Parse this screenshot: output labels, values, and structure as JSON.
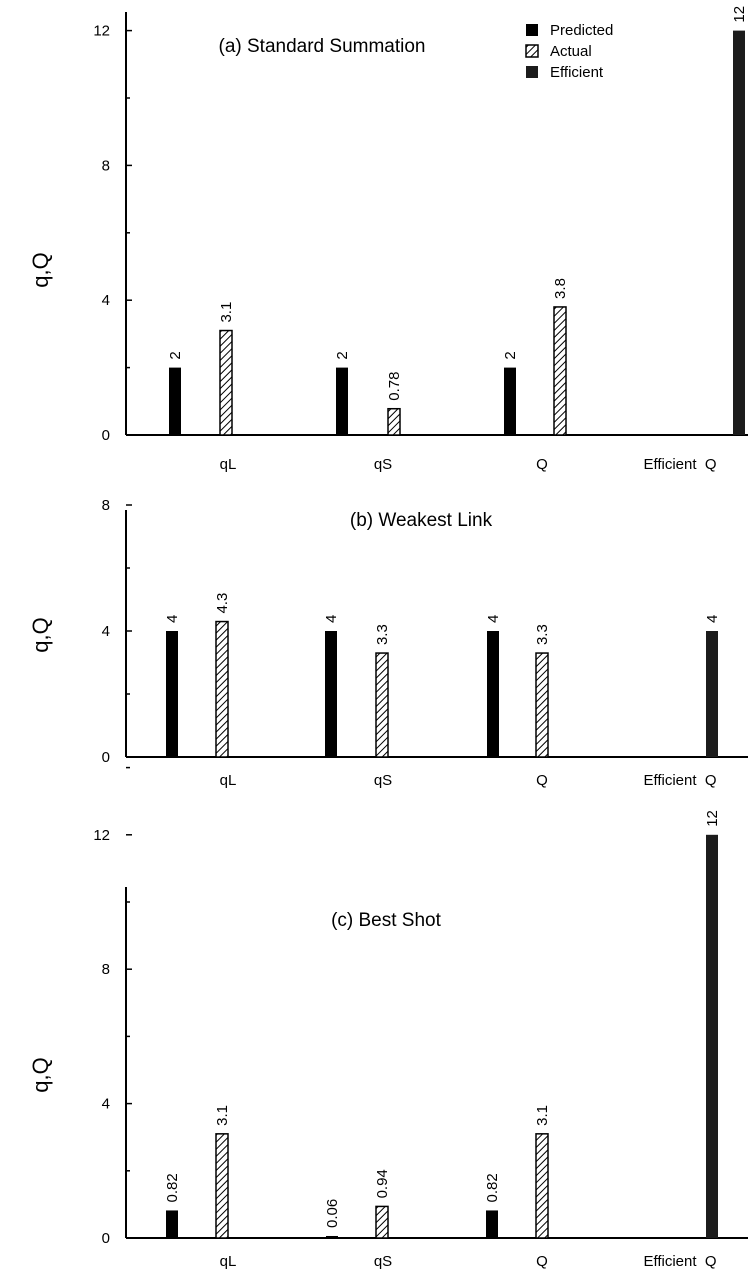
{
  "chart_data": [
    {
      "type": "bar",
      "title": "(a) Standard Summation",
      "ylabel": "q,Q",
      "categories": [
        "qL",
        "qS",
        "Q",
        "Efficient  Q"
      ],
      "ylim": [
        0,
        14
      ],
      "yticks": [
        "0",
        "4",
        "8",
        "12"
      ],
      "series": [
        {
          "name": "Predicted",
          "values": [
            2,
            2,
            2,
            null
          ],
          "labels": [
            "2",
            "2",
            "2",
            null
          ]
        },
        {
          "name": "Actual",
          "values": [
            3.1,
            0.78,
            3.8,
            null
          ],
          "labels": [
            "3.1",
            "0.78",
            "3.8",
            null
          ]
        },
        {
          "name": "Efficient",
          "values": [
            null,
            null,
            null,
            12
          ],
          "labels": [
            null,
            null,
            null,
            "12"
          ]
        }
      ],
      "legend": "top-right",
      "grid": false
    },
    {
      "type": "bar",
      "title": "(b) Weakest Link",
      "ylabel": "q,Q",
      "categories": [
        "qL",
        "qS",
        "Q",
        "Efficient  Q"
      ],
      "ylim": [
        0,
        8
      ],
      "yticks": [
        "0",
        "4",
        "8"
      ],
      "series": [
        {
          "name": "Predicted",
          "values": [
            4,
            4,
            4,
            null
          ],
          "labels": [
            "4",
            "4",
            "4",
            null
          ]
        },
        {
          "name": "Actual",
          "values": [
            4.3,
            3.3,
            3.3,
            null
          ],
          "labels": [
            "4.3",
            "3.3",
            "3.3",
            null
          ]
        },
        {
          "name": "Efficient",
          "values": [
            null,
            null,
            null,
            4
          ],
          "labels": [
            null,
            null,
            null,
            "4"
          ]
        }
      ],
      "grid": false
    },
    {
      "type": "bar",
      "title": "(c) Best Shot",
      "ylabel": "q,Q",
      "categories": [
        "qL",
        "qS",
        "Q",
        "Efficient  Q"
      ],
      "ylim": [
        0,
        14
      ],
      "yticks": [
        "0",
        "4",
        "8",
        "12"
      ],
      "series": [
        {
          "name": "Predicted",
          "values": [
            0.82,
            0.06,
            0.82,
            null
          ],
          "labels": [
            "0.82",
            "0.06",
            "0.82",
            null
          ]
        },
        {
          "name": "Actual",
          "values": [
            3.1,
            0.94,
            3.1,
            null
          ],
          "labels": [
            "3.1",
            "0.94",
            "3.1",
            null
          ]
        },
        {
          "name": "Efficient",
          "values": [
            null,
            null,
            null,
            12
          ],
          "labels": [
            null,
            null,
            null,
            "12"
          ]
        }
      ],
      "grid": false
    }
  ],
  "legend": {
    "items": [
      {
        "label": "Predicted",
        "style": "solid"
      },
      {
        "label": "Actual",
        "style": "hatched"
      },
      {
        "label": "Efficient",
        "style": "solid"
      }
    ]
  },
  "colors": {
    "ink": "#000000",
    "efficient_fill": "#1c1c1c"
  }
}
